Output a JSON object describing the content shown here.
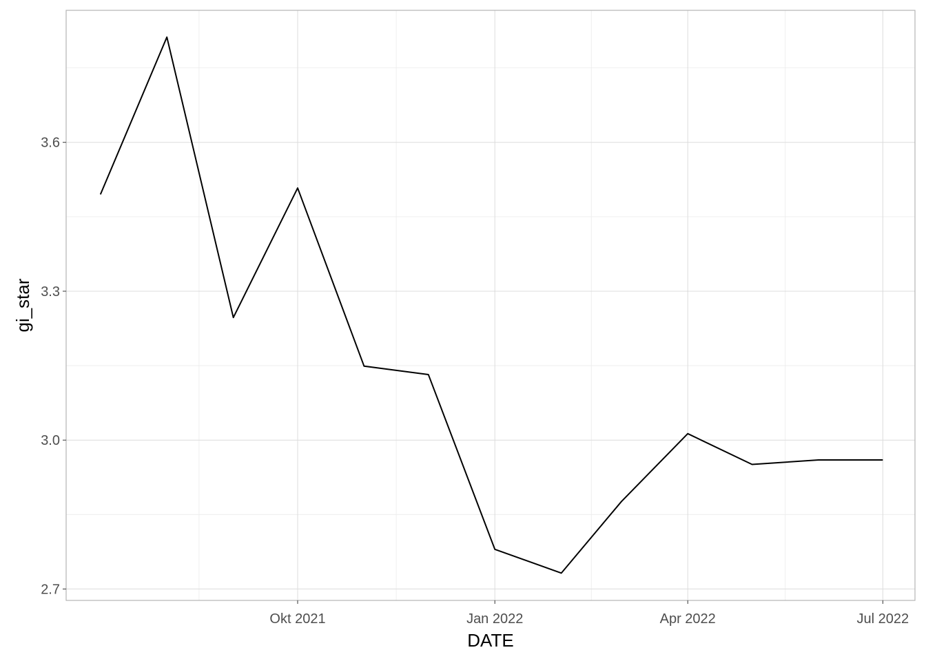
{
  "chart_data": {
    "type": "line",
    "xlabel": "DATE",
    "ylabel": "gi_star",
    "x_tick_labels": [
      "Okt 2021",
      "Jan 2022",
      "Apr 2022",
      "Jul 2022"
    ],
    "x_tick_dates": [
      "2021-10-01",
      "2022-01-01",
      "2022-04-01",
      "2022-07-01"
    ],
    "y_ticks": [
      2.7,
      3.0,
      3.3,
      3.6
    ],
    "y_tick_labels": [
      "2.7",
      "3.0",
      "3.3",
      "3.6"
    ],
    "xlim": [
      "2021-06-15",
      "2022-07-16"
    ],
    "ylim": [
      2.677,
      3.866
    ],
    "grid": true,
    "series": [
      {
        "x": [
          "2021-07-01",
          "2021-08-01",
          "2021-09-01",
          "2021-10-01",
          "2021-11-01",
          "2021-12-01",
          "2022-01-01",
          "2022-02-01",
          "2022-03-01",
          "2022-04-01",
          "2022-05-01",
          "2022-06-01",
          "2022-07-01"
        ],
        "values": [
          3.495,
          3.812,
          3.247,
          3.508,
          3.149,
          3.132,
          2.78,
          2.732,
          2.876,
          3.013,
          2.951,
          2.96,
          2.96
        ],
        "color": "#000000"
      }
    ]
  }
}
